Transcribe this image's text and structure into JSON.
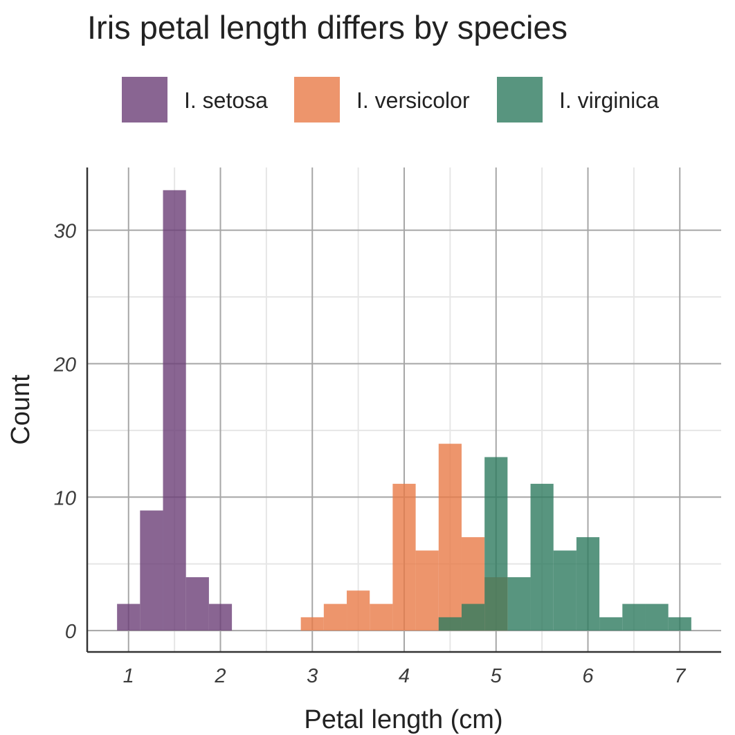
{
  "chart_data": {
    "type": "bar",
    "title": "Iris petal length differs by species",
    "xlabel": "Petal length (cm)",
    "ylabel": "Count",
    "xlim": [
      0.55,
      7.45
    ],
    "ylim": [
      -1.6,
      34.7
    ],
    "x_ticks": [
      1,
      2,
      3,
      4,
      5,
      6,
      7
    ],
    "y_ticks": [
      0,
      10,
      20,
      30
    ],
    "bin_width": 0.25,
    "grid": true,
    "legend_position": "top",
    "overlay": true,
    "series": [
      {
        "name": "I.  setosa",
        "color": "#6b3f77",
        "bins": [
          {
            "start": 0.875,
            "count": 2
          },
          {
            "start": 1.125,
            "count": 9
          },
          {
            "start": 1.375,
            "count": 33
          },
          {
            "start": 1.625,
            "count": 4
          },
          {
            "start": 1.875,
            "count": 2
          }
        ]
      },
      {
        "name": "I.  versicolor",
        "color": "#e87a47",
        "bins": [
          {
            "start": 2.875,
            "count": 1
          },
          {
            "start": 3.125,
            "count": 2
          },
          {
            "start": 3.375,
            "count": 3
          },
          {
            "start": 3.625,
            "count": 2
          },
          {
            "start": 3.875,
            "count": 11
          },
          {
            "start": 4.125,
            "count": 6
          },
          {
            "start": 4.375,
            "count": 14
          },
          {
            "start": 4.625,
            "count": 7
          },
          {
            "start": 4.875,
            "count": 4
          }
        ]
      },
      {
        "name": "I.  virginica",
        "color": "#2e7a5f",
        "bins": [
          {
            "start": 4.375,
            "count": 1
          },
          {
            "start": 4.625,
            "count": 2
          },
          {
            "start": 4.875,
            "count": 13
          },
          {
            "start": 5.125,
            "count": 4
          },
          {
            "start": 5.375,
            "count": 11
          },
          {
            "start": 5.625,
            "count": 6
          },
          {
            "start": 5.875,
            "count": 7
          },
          {
            "start": 6.125,
            "count": 1
          },
          {
            "start": 6.375,
            "count": 2
          },
          {
            "start": 6.625,
            "count": 2
          },
          {
            "start": 6.875,
            "count": 1
          }
        ]
      }
    ]
  }
}
